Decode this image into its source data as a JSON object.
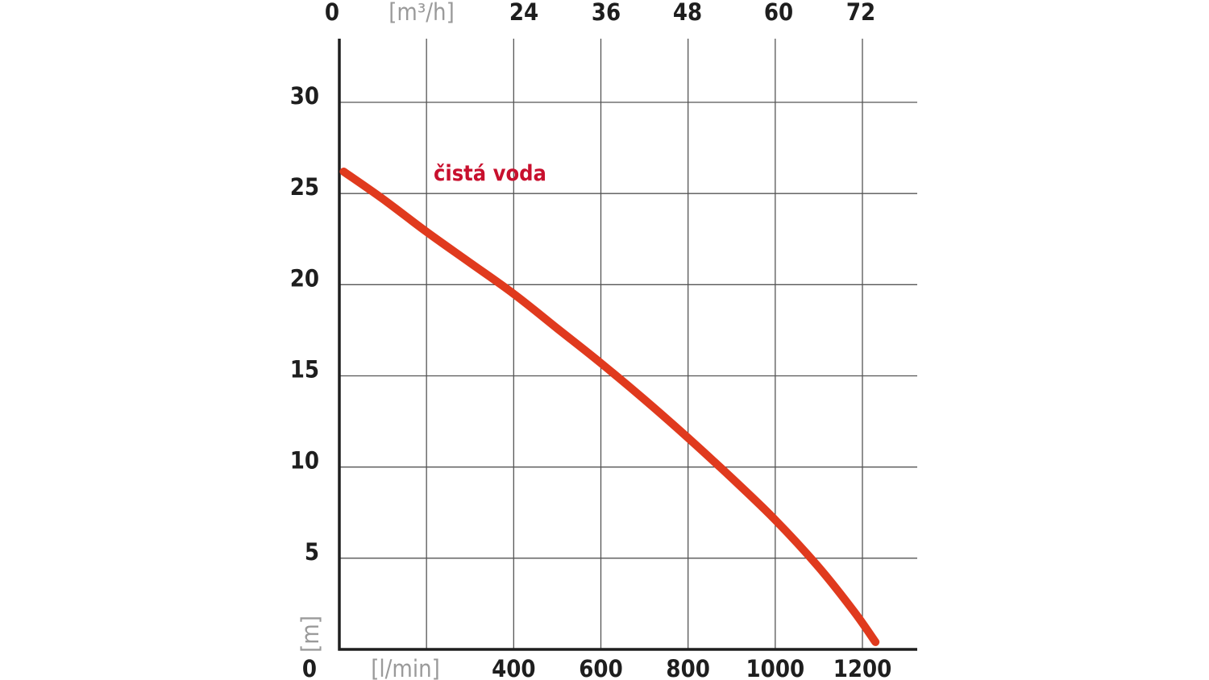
{
  "chart_data": {
    "type": "line",
    "x_axis": {
      "unit": "[l/min]",
      "zero_label": "0",
      "range": [
        0,
        1300
      ],
      "ticks": [
        400,
        600,
        800,
        1000,
        1200
      ],
      "tick_labels": [
        "400",
        "600",
        "800",
        "1000",
        "1200"
      ],
      "grid_values": [
        200,
        400,
        600,
        800,
        1000,
        1200
      ]
    },
    "top_axis": {
      "unit": "[m³/h]",
      "zero_label": "0",
      "ticks": [
        24,
        36,
        48,
        60,
        72
      ],
      "tick_labels": [
        "24",
        "36",
        "48",
        "60",
        "72"
      ]
    },
    "y_axis": {
      "unit": "[m]",
      "zero_label": "0",
      "range": [
        0,
        33.5
      ],
      "ticks": [
        5,
        10,
        15,
        20,
        25,
        30
      ],
      "tick_labels": [
        "5",
        "10",
        "15",
        "20",
        "25",
        "30"
      ]
    },
    "grid": true,
    "series": [
      {
        "name": "čistá voda",
        "color": "#e03a1e",
        "label_color": "#c8102e",
        "x": [
          10,
          100,
          200,
          300,
          400,
          500,
          600,
          700,
          800,
          900,
          1000,
          1100,
          1180,
          1230
        ],
        "y": [
          26.2,
          24.7,
          22.9,
          21.2,
          19.5,
          17.6,
          15.7,
          13.7,
          11.6,
          9.4,
          7.1,
          4.5,
          2.1,
          0.4
        ]
      }
    ]
  }
}
